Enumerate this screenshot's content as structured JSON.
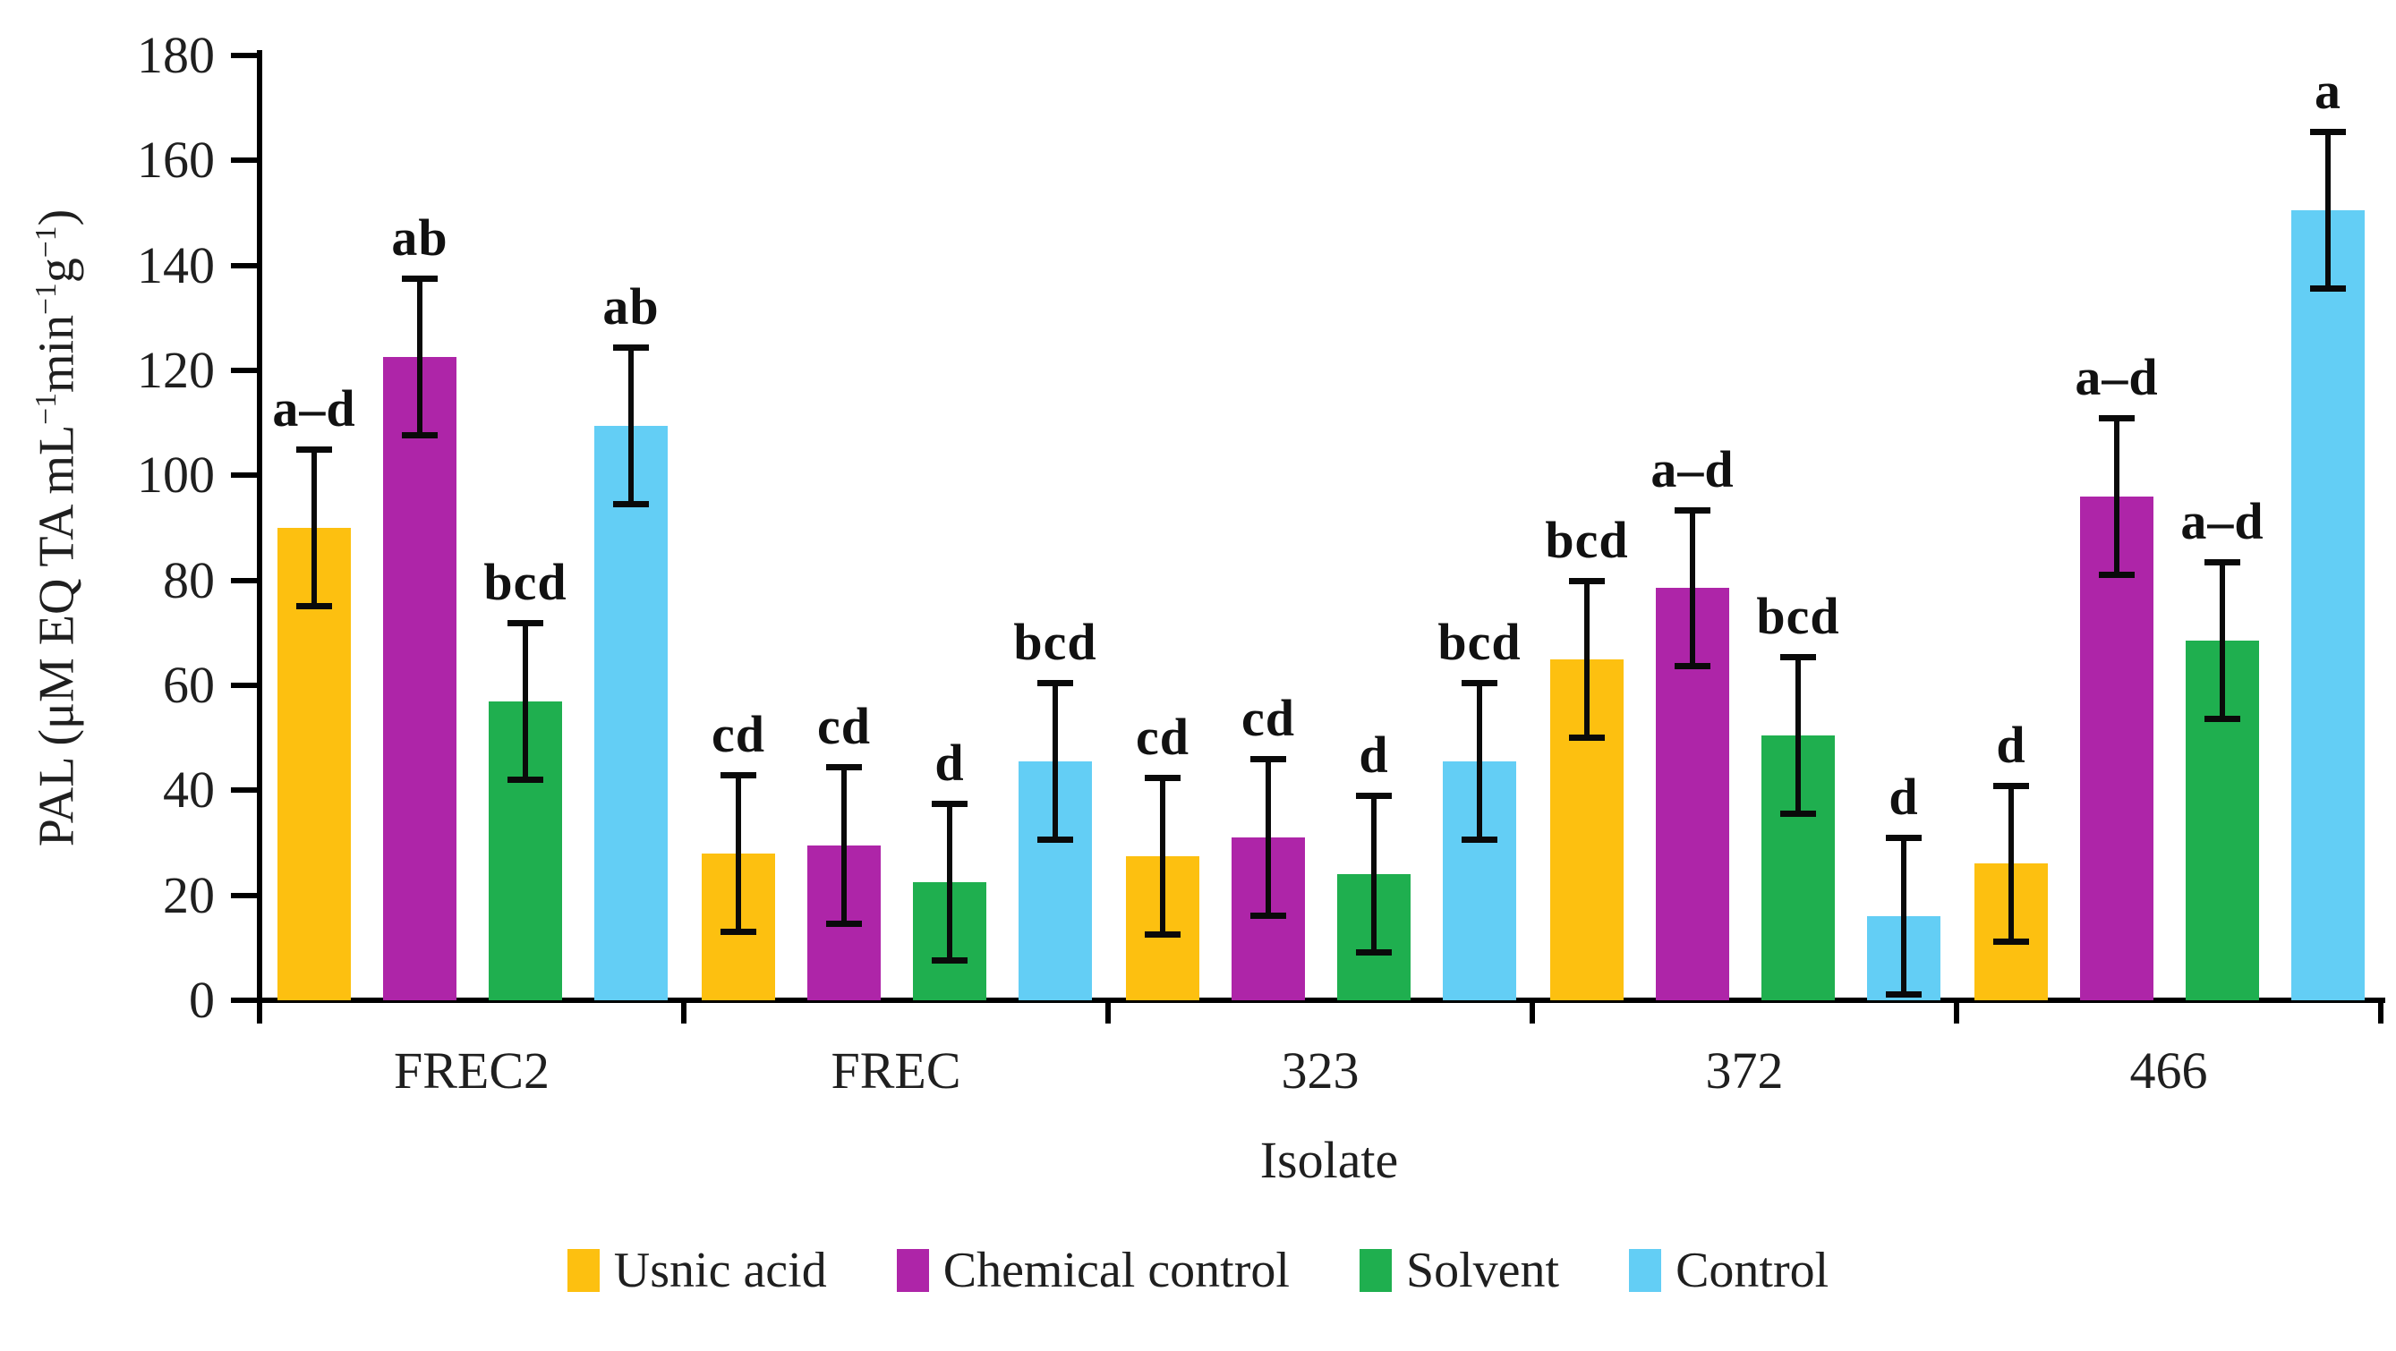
{
  "chart_data": {
    "type": "bar",
    "title": "",
    "xlabel": "Isolate",
    "ylabel": "PAL (μM EQ TA mL−1min−1g−1)",
    "ylabel_parts": {
      "p1": "PAL (μM EQ TA mL",
      "s1": "−1",
      "p2": "min",
      "s2": "−1",
      "p3": "g",
      "s3": "−1",
      "p4": ")"
    },
    "ylim": [
      0,
      180
    ],
    "ytick_step": 20,
    "yticks": [
      0,
      20,
      40,
      60,
      80,
      100,
      120,
      140,
      160,
      180
    ],
    "categories": [
      "FREC2",
      "FREC",
      "323",
      "372",
      "466"
    ],
    "series": [
      {
        "name": "Usnic acid",
        "color": "#FDC010",
        "values": [
          90,
          28,
          27.5,
          65,
          26
        ],
        "error": 15.5,
        "sig_labels": [
          "a–d",
          "cd",
          "cd",
          "bcd",
          "d"
        ]
      },
      {
        "name": "Chemical control",
        "color": "#AE25A8",
        "values": [
          122.5,
          29.5,
          31,
          78.5,
          96
        ],
        "error": 15.5,
        "sig_labels": [
          "ab",
          "cd",
          "cd",
          "a–d",
          "a–d"
        ]
      },
      {
        "name": "Solvent",
        "color": "#1FAF4F",
        "values": [
          57,
          22.5,
          24,
          50.5,
          68.5
        ],
        "error": 15.5,
        "sig_labels": [
          "bcd",
          "d",
          "d",
          "bcd",
          "a–d"
        ]
      },
      {
        "name": "Control",
        "color": "#63CEF5",
        "values": [
          109.5,
          45.5,
          45.5,
          16,
          150.5
        ],
        "error": 15.5,
        "sig_labels": [
          "ab",
          "bcd",
          "bcd",
          "d",
          "a"
        ]
      }
    ],
    "grid": false,
    "legend_position": "bottom",
    "axis_color": "#000000",
    "error_bar_color": "#0a0a0a"
  }
}
